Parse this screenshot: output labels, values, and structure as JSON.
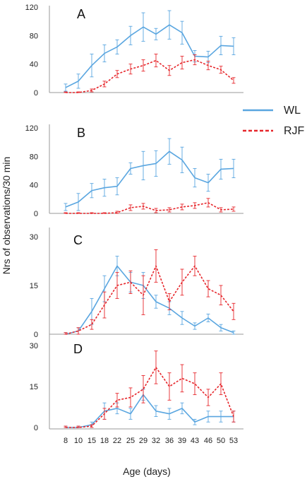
{
  "colors": {
    "WL": "#5aa6e0",
    "RJF": "#e6262b",
    "axis": "#9a9a9a"
  },
  "chart_data": {
    "type": "line",
    "xlabel": "Age (days)",
    "ylabel": "Nrs of observations/30 min",
    "x": [
      8,
      10,
      15,
      18,
      22,
      25,
      29,
      32,
      36,
      39,
      43,
      46,
      50,
      53
    ],
    "x_tick_labels": [
      "8",
      "10",
      "15",
      "18",
      "22",
      "25",
      "29",
      "32",
      "36",
      "39",
      "43",
      "46",
      "50",
      "53"
    ],
    "legend": {
      "placement": "right",
      "entries": [
        "WL",
        "RJF"
      ]
    },
    "panels": [
      {
        "label": "A",
        "ylim": [
          0,
          120
        ],
        "yticks": [
          "0",
          "40",
          "80",
          "120"
        ],
        "series": [
          {
            "name": "WL",
            "style": "solid",
            "values": [
              7,
              16,
              38,
              55,
              64,
              80,
              92,
              82,
              95,
              84,
              51,
              50,
              66,
              65
            ],
            "errors": [
              5,
              10,
              16,
              12,
              10,
              13,
              20,
              8,
              20,
              16,
              8,
              8,
              13,
              12
            ]
          },
          {
            "name": "RJF",
            "style": "dashed",
            "values": [
              0,
              0,
              3,
              12,
              26,
              33,
              38,
              45,
              31,
              42,
              46,
              38,
              32,
              17
            ],
            "errors": [
              1,
              1,
              2,
              4,
              5,
              7,
              8,
              9,
              7,
              9,
              7,
              6,
              5,
              4
            ]
          }
        ]
      },
      {
        "label": "B",
        "ylim": [
          0,
          120
        ],
        "yticks": [
          "0",
          "40",
          "80",
          "120"
        ],
        "series": [
          {
            "name": "WL",
            "style": "solid",
            "values": [
              9,
              16,
              32,
              36,
              38,
              63,
              67,
              70,
              87,
              75,
              50,
              43,
              62,
              63
            ],
            "errors": [
              5,
              12,
              10,
              12,
              12,
              8,
              20,
              18,
              18,
              18,
              13,
              12,
              14,
              13
            ]
          },
          {
            "name": "RJF",
            "style": "dashed",
            "values": [
              0,
              0,
              0,
              0,
              1,
              8,
              10,
              4,
              5,
              9,
              11,
              15,
              5,
              6
            ],
            "errors": [
              1,
              1,
              1,
              1,
              2,
              4,
              4,
              3,
              3,
              4,
              4,
              6,
              3,
              3
            ]
          }
        ]
      },
      {
        "label": "C",
        "ylim": [
          0,
          30
        ],
        "yticks": [
          "0",
          "15",
          "30"
        ],
        "series": [
          {
            "name": "WL",
            "style": "solid",
            "values": [
              0,
              1,
              7,
              14,
              21,
              16,
              15,
              10,
              8,
              5,
              2.5,
              5,
              2,
              0.5
            ],
            "errors": [
              0.5,
              1,
              4,
              4,
              3,
              3,
              4,
              2,
              2,
              2,
              1,
              1.2,
              1,
              0.5
            ]
          },
          {
            "name": "RJF",
            "style": "dashed",
            "values": [
              0,
              1,
              3,
              9,
              15,
              16,
              12,
              21,
              10,
              16,
              21,
              14,
              12,
              7
            ],
            "errors": [
              0.5,
              1,
              1.5,
              4,
              4,
              3.5,
              6,
              5,
              2.5,
              4,
              3,
              2.5,
              3,
              2.5
            ]
          }
        ]
      },
      {
        "label": "D",
        "ylim": [
          0,
          30
        ],
        "yticks": [
          "0",
          "15",
          "30"
        ],
        "series": [
          {
            "name": "WL",
            "style": "solid",
            "values": [
              0,
              0,
              1,
              6,
              7,
              5,
              12,
              6,
              5,
              7,
              2,
              4,
              4,
              4
            ],
            "errors": [
              0.5,
              0.5,
              1,
              3,
              2,
              2,
              2,
              2,
              2,
              2,
              1,
              2,
              2,
              2
            ]
          },
          {
            "name": "RJF",
            "style": "dashed",
            "values": [
              0,
              0,
              0.5,
              5,
              10,
              11,
              14,
              22,
              15,
              18,
              16,
              11,
              16,
              4
            ],
            "errors": [
              0.5,
              0.5,
              0.5,
              2,
              2.5,
              3.5,
              5,
              6,
              5,
              5,
              4,
              3,
              4,
              2
            ]
          }
        ]
      }
    ]
  }
}
